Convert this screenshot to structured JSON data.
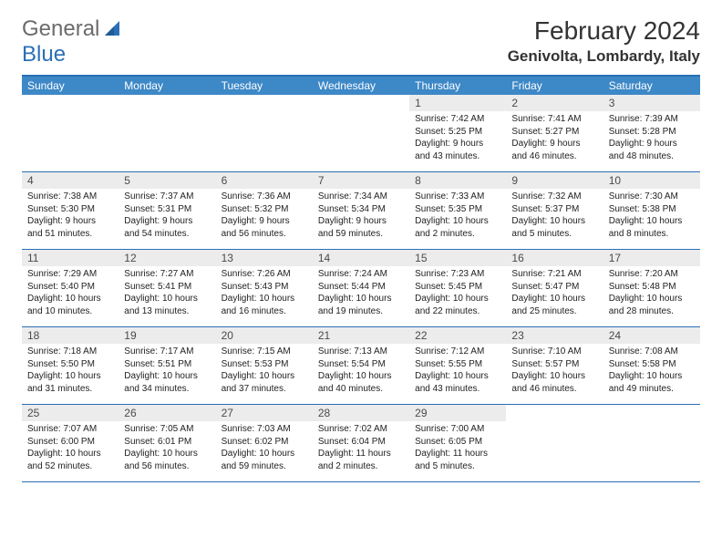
{
  "logo": {
    "text1": "General",
    "text2": "Blue"
  },
  "title": "February 2024",
  "location": "Genivolta, Lombardy, Italy",
  "colors": {
    "header_bar": "#3d88c7",
    "rule": "#2a6fb5",
    "daynum_bg": "#ececec",
    "text": "#222222",
    "logo_gray": "#6b6b6b",
    "logo_blue": "#2a6fb5"
  },
  "day_names": [
    "Sunday",
    "Monday",
    "Tuesday",
    "Wednesday",
    "Thursday",
    "Friday",
    "Saturday"
  ],
  "weeks": [
    [
      {
        "n": "",
        "sr": "",
        "ss": "",
        "dl": ""
      },
      {
        "n": "",
        "sr": "",
        "ss": "",
        "dl": ""
      },
      {
        "n": "",
        "sr": "",
        "ss": "",
        "dl": ""
      },
      {
        "n": "",
        "sr": "",
        "ss": "",
        "dl": ""
      },
      {
        "n": "1",
        "sr": "Sunrise: 7:42 AM",
        "ss": "Sunset: 5:25 PM",
        "dl": "Daylight: 9 hours and 43 minutes."
      },
      {
        "n": "2",
        "sr": "Sunrise: 7:41 AM",
        "ss": "Sunset: 5:27 PM",
        "dl": "Daylight: 9 hours and 46 minutes."
      },
      {
        "n": "3",
        "sr": "Sunrise: 7:39 AM",
        "ss": "Sunset: 5:28 PM",
        "dl": "Daylight: 9 hours and 48 minutes."
      }
    ],
    [
      {
        "n": "4",
        "sr": "Sunrise: 7:38 AM",
        "ss": "Sunset: 5:30 PM",
        "dl": "Daylight: 9 hours and 51 minutes."
      },
      {
        "n": "5",
        "sr": "Sunrise: 7:37 AM",
        "ss": "Sunset: 5:31 PM",
        "dl": "Daylight: 9 hours and 54 minutes."
      },
      {
        "n": "6",
        "sr": "Sunrise: 7:36 AM",
        "ss": "Sunset: 5:32 PM",
        "dl": "Daylight: 9 hours and 56 minutes."
      },
      {
        "n": "7",
        "sr": "Sunrise: 7:34 AM",
        "ss": "Sunset: 5:34 PM",
        "dl": "Daylight: 9 hours and 59 minutes."
      },
      {
        "n": "8",
        "sr": "Sunrise: 7:33 AM",
        "ss": "Sunset: 5:35 PM",
        "dl": "Daylight: 10 hours and 2 minutes."
      },
      {
        "n": "9",
        "sr": "Sunrise: 7:32 AM",
        "ss": "Sunset: 5:37 PM",
        "dl": "Daylight: 10 hours and 5 minutes."
      },
      {
        "n": "10",
        "sr": "Sunrise: 7:30 AM",
        "ss": "Sunset: 5:38 PM",
        "dl": "Daylight: 10 hours and 8 minutes."
      }
    ],
    [
      {
        "n": "11",
        "sr": "Sunrise: 7:29 AM",
        "ss": "Sunset: 5:40 PM",
        "dl": "Daylight: 10 hours and 10 minutes."
      },
      {
        "n": "12",
        "sr": "Sunrise: 7:27 AM",
        "ss": "Sunset: 5:41 PM",
        "dl": "Daylight: 10 hours and 13 minutes."
      },
      {
        "n": "13",
        "sr": "Sunrise: 7:26 AM",
        "ss": "Sunset: 5:43 PM",
        "dl": "Daylight: 10 hours and 16 minutes."
      },
      {
        "n": "14",
        "sr": "Sunrise: 7:24 AM",
        "ss": "Sunset: 5:44 PM",
        "dl": "Daylight: 10 hours and 19 minutes."
      },
      {
        "n": "15",
        "sr": "Sunrise: 7:23 AM",
        "ss": "Sunset: 5:45 PM",
        "dl": "Daylight: 10 hours and 22 minutes."
      },
      {
        "n": "16",
        "sr": "Sunrise: 7:21 AM",
        "ss": "Sunset: 5:47 PM",
        "dl": "Daylight: 10 hours and 25 minutes."
      },
      {
        "n": "17",
        "sr": "Sunrise: 7:20 AM",
        "ss": "Sunset: 5:48 PM",
        "dl": "Daylight: 10 hours and 28 minutes."
      }
    ],
    [
      {
        "n": "18",
        "sr": "Sunrise: 7:18 AM",
        "ss": "Sunset: 5:50 PM",
        "dl": "Daylight: 10 hours and 31 minutes."
      },
      {
        "n": "19",
        "sr": "Sunrise: 7:17 AM",
        "ss": "Sunset: 5:51 PM",
        "dl": "Daylight: 10 hours and 34 minutes."
      },
      {
        "n": "20",
        "sr": "Sunrise: 7:15 AM",
        "ss": "Sunset: 5:53 PM",
        "dl": "Daylight: 10 hours and 37 minutes."
      },
      {
        "n": "21",
        "sr": "Sunrise: 7:13 AM",
        "ss": "Sunset: 5:54 PM",
        "dl": "Daylight: 10 hours and 40 minutes."
      },
      {
        "n": "22",
        "sr": "Sunrise: 7:12 AM",
        "ss": "Sunset: 5:55 PM",
        "dl": "Daylight: 10 hours and 43 minutes."
      },
      {
        "n": "23",
        "sr": "Sunrise: 7:10 AM",
        "ss": "Sunset: 5:57 PM",
        "dl": "Daylight: 10 hours and 46 minutes."
      },
      {
        "n": "24",
        "sr": "Sunrise: 7:08 AM",
        "ss": "Sunset: 5:58 PM",
        "dl": "Daylight: 10 hours and 49 minutes."
      }
    ],
    [
      {
        "n": "25",
        "sr": "Sunrise: 7:07 AM",
        "ss": "Sunset: 6:00 PM",
        "dl": "Daylight: 10 hours and 52 minutes."
      },
      {
        "n": "26",
        "sr": "Sunrise: 7:05 AM",
        "ss": "Sunset: 6:01 PM",
        "dl": "Daylight: 10 hours and 56 minutes."
      },
      {
        "n": "27",
        "sr": "Sunrise: 7:03 AM",
        "ss": "Sunset: 6:02 PM",
        "dl": "Daylight: 10 hours and 59 minutes."
      },
      {
        "n": "28",
        "sr": "Sunrise: 7:02 AM",
        "ss": "Sunset: 6:04 PM",
        "dl": "Daylight: 11 hours and 2 minutes."
      },
      {
        "n": "29",
        "sr": "Sunrise: 7:00 AM",
        "ss": "Sunset: 6:05 PM",
        "dl": "Daylight: 11 hours and 5 minutes."
      },
      {
        "n": "",
        "sr": "",
        "ss": "",
        "dl": ""
      },
      {
        "n": "",
        "sr": "",
        "ss": "",
        "dl": ""
      }
    ]
  ]
}
